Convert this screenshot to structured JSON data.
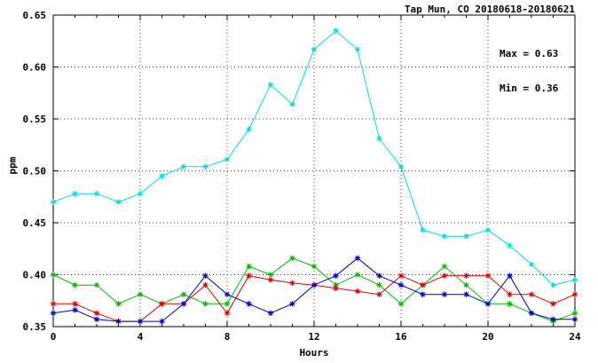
{
  "title": "Tap Mun, CO 20180618-20180621",
  "annotation": {
    "max": "Max = 0.63",
    "min": "Min = 0.36"
  },
  "chart_data": {
    "type": "line",
    "title": "Tap Mun, CO 20180618-20180621",
    "xlabel": "Hours",
    "ylabel": "ppm",
    "xlim": [
      0,
      24
    ],
    "ylim": [
      0.35,
      0.65
    ],
    "xticks": [
      0,
      4,
      8,
      12,
      16,
      20,
      24
    ],
    "xtick_labels": [
      "0",
      "4",
      "8",
      "12",
      "16",
      "20",
      "24"
    ],
    "yticks": [
      0.35,
      0.4,
      0.45,
      0.5,
      0.55,
      0.6,
      0.65
    ],
    "ytick_labels": [
      "0.35",
      "0.40",
      "0.45",
      "0.50",
      "0.55",
      "0.60",
      "0.65"
    ],
    "grid": true,
    "legend": "none",
    "marker": "asterisk",
    "x": [
      0,
      1,
      2,
      3,
      4,
      5,
      6,
      7,
      8,
      9,
      10,
      11,
      12,
      13,
      14,
      15,
      16,
      17,
      18,
      19,
      20,
      21,
      22,
      23,
      24
    ],
    "series": [
      {
        "name": "day-1-cyan",
        "color": "#00dddd",
        "values": [
          0.47,
          0.478,
          0.478,
          0.47,
          0.478,
          0.495,
          0.504,
          0.504,
          0.511,
          0.54,
          0.583,
          0.564,
          0.617,
          0.635,
          0.617,
          0.531,
          0.504,
          0.443,
          0.437,
          0.437,
          0.443,
          0.428,
          0.41,
          0.39,
          0.395
        ]
      },
      {
        "name": "day-2-green",
        "color": "#00bb00",
        "values": [
          0.4,
          0.39,
          0.39,
          0.372,
          0.381,
          0.372,
          0.381,
          0.372,
          0.372,
          0.408,
          0.4,
          0.416,
          0.408,
          0.39,
          0.4,
          0.39,
          0.372,
          0.39,
          0.408,
          0.39,
          0.372,
          0.372,
          0.363,
          0.355,
          0.363
        ]
      },
      {
        "name": "day-3-red",
        "color": "#dd0000",
        "values": [
          0.372,
          0.372,
          0.363,
          0.355,
          0.355,
          0.372,
          0.372,
          0.39,
          0.363,
          0.399,
          0.395,
          0.392,
          0.39,
          0.387,
          0.384,
          0.381,
          0.399,
          0.39,
          0.399,
          0.399,
          0.399,
          0.381,
          0.381,
          0.372,
          0.381
        ]
      },
      {
        "name": "day-4-blue",
        "color": "#0000cc",
        "values": [
          0.363,
          0.366,
          0.357,
          0.355,
          0.355,
          0.355,
          0.372,
          0.399,
          0.381,
          0.372,
          0.363,
          0.372,
          0.39,
          0.399,
          0.416,
          0.399,
          0.39,
          0.381,
          0.381,
          0.381,
          0.372,
          0.399,
          0.363,
          0.357,
          0.357
        ]
      }
    ]
  }
}
